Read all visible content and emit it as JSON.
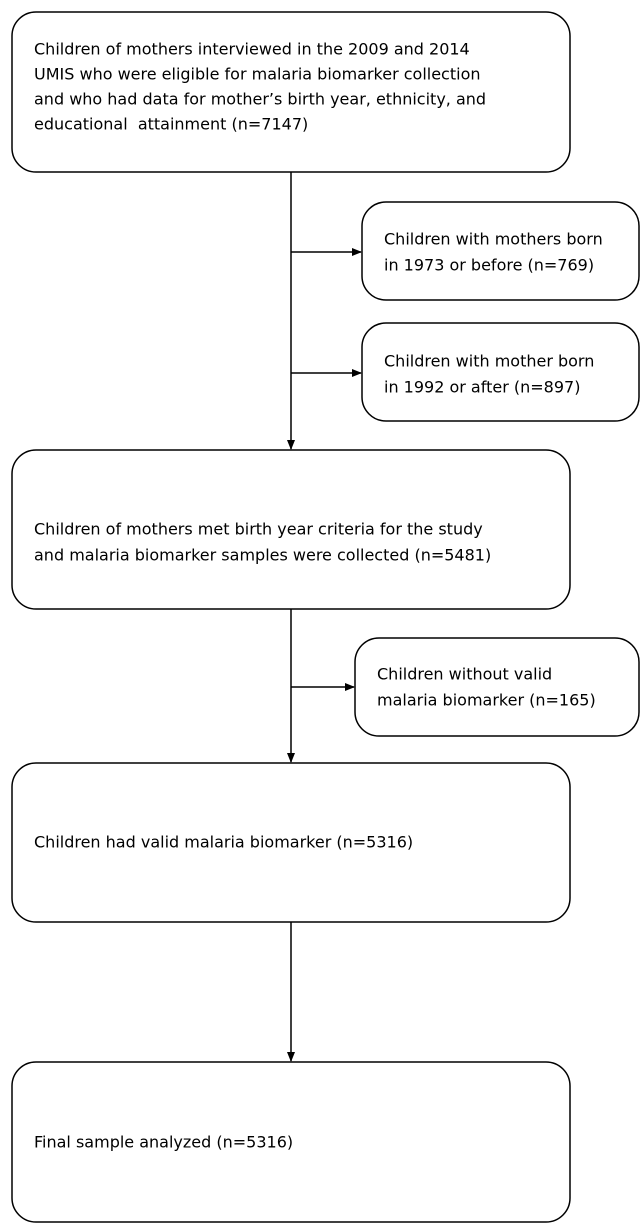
{
  "nodes": [
    {
      "lines": [
        "Children of mothers interviewed in the 2009 and 2014",
        "UMIS who were eligible for malaria biomarker collection",
        "and who had data for mother’s birth year, ethnicity, and",
        "educational  attainment (n=7147)"
      ]
    },
    {
      "lines": [
        "Children with mothers born",
        "in 1973 or before (n=769)"
      ]
    },
    {
      "lines": [
        "Children with mother born",
        "in 1992 or after (n=897)"
      ]
    },
    {
      "lines": [
        "Children of mothers met birth year criteria for the study",
        "and malaria biomarker samples were collected (n=5481)"
      ]
    },
    {
      "lines": [
        "Children without valid",
        "malaria biomarker (n=165)"
      ]
    },
    {
      "lines": [
        "Children had valid malaria biomarker (n=5316)"
      ]
    },
    {
      "lines": [
        "Final sample analyzed (n=5316)"
      ]
    }
  ]
}
